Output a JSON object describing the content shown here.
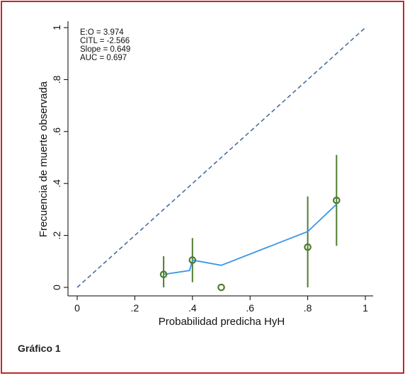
{
  "figure": {
    "caption": "Gráfico 1"
  },
  "chart_data": {
    "type": "scatter",
    "xlabel": "Probabilidad predicha HyH",
    "ylabel": "Frecuencia de muerte observada",
    "xlim": [
      0,
      1
    ],
    "ylim": [
      0,
      1
    ],
    "xticks": [
      {
        "v": 0,
        "label": "0"
      },
      {
        "v": 0.2,
        "label": ".2"
      },
      {
        "v": 0.4,
        "label": ".4"
      },
      {
        "v": 0.6,
        "label": ".6"
      },
      {
        "v": 0.8,
        "label": ".8"
      },
      {
        "v": 1,
        "label": "1"
      }
    ],
    "yticks": [
      {
        "v": 0,
        "label": "0"
      },
      {
        "v": 0.2,
        "label": ".2"
      },
      {
        "v": 0.4,
        "label": ".4"
      },
      {
        "v": 0.6,
        "label": ".6"
      },
      {
        "v": 0.8,
        "label": ".8"
      },
      {
        "v": 1,
        "label": "1"
      }
    ],
    "grid": false,
    "annotations": [
      "E:O = 3.974",
      "CITL = -2.566",
      "Slope = 0.649",
      "AUC = 0.697"
    ],
    "reference_line": {
      "x": [
        0,
        1
      ],
      "y": [
        0,
        1
      ],
      "style": "dashed",
      "color": "#4a6f9b"
    },
    "smooth_curve": {
      "color": "#3a96e8",
      "x": [
        0.3,
        0.39,
        0.4,
        0.5,
        0.8,
        0.9
      ],
      "y": [
        0.05,
        0.065,
        0.105,
        0.085,
        0.215,
        0.32
      ]
    },
    "groups": {
      "marker_color": "#4e7d2e",
      "points": [
        {
          "x": 0.3,
          "y": 0.05,
          "lo": 0.0,
          "hi": 0.12
        },
        {
          "x": 0.4,
          "y": 0.105,
          "lo": 0.02,
          "hi": 0.19
        },
        {
          "x": 0.5,
          "y": 0.0,
          "lo": null,
          "hi": null
        },
        {
          "x": 0.8,
          "y": 0.155,
          "lo": 0.0,
          "hi": 0.35
        },
        {
          "x": 0.9,
          "y": 0.335,
          "lo": 0.16,
          "hi": 0.51
        }
      ]
    }
  }
}
